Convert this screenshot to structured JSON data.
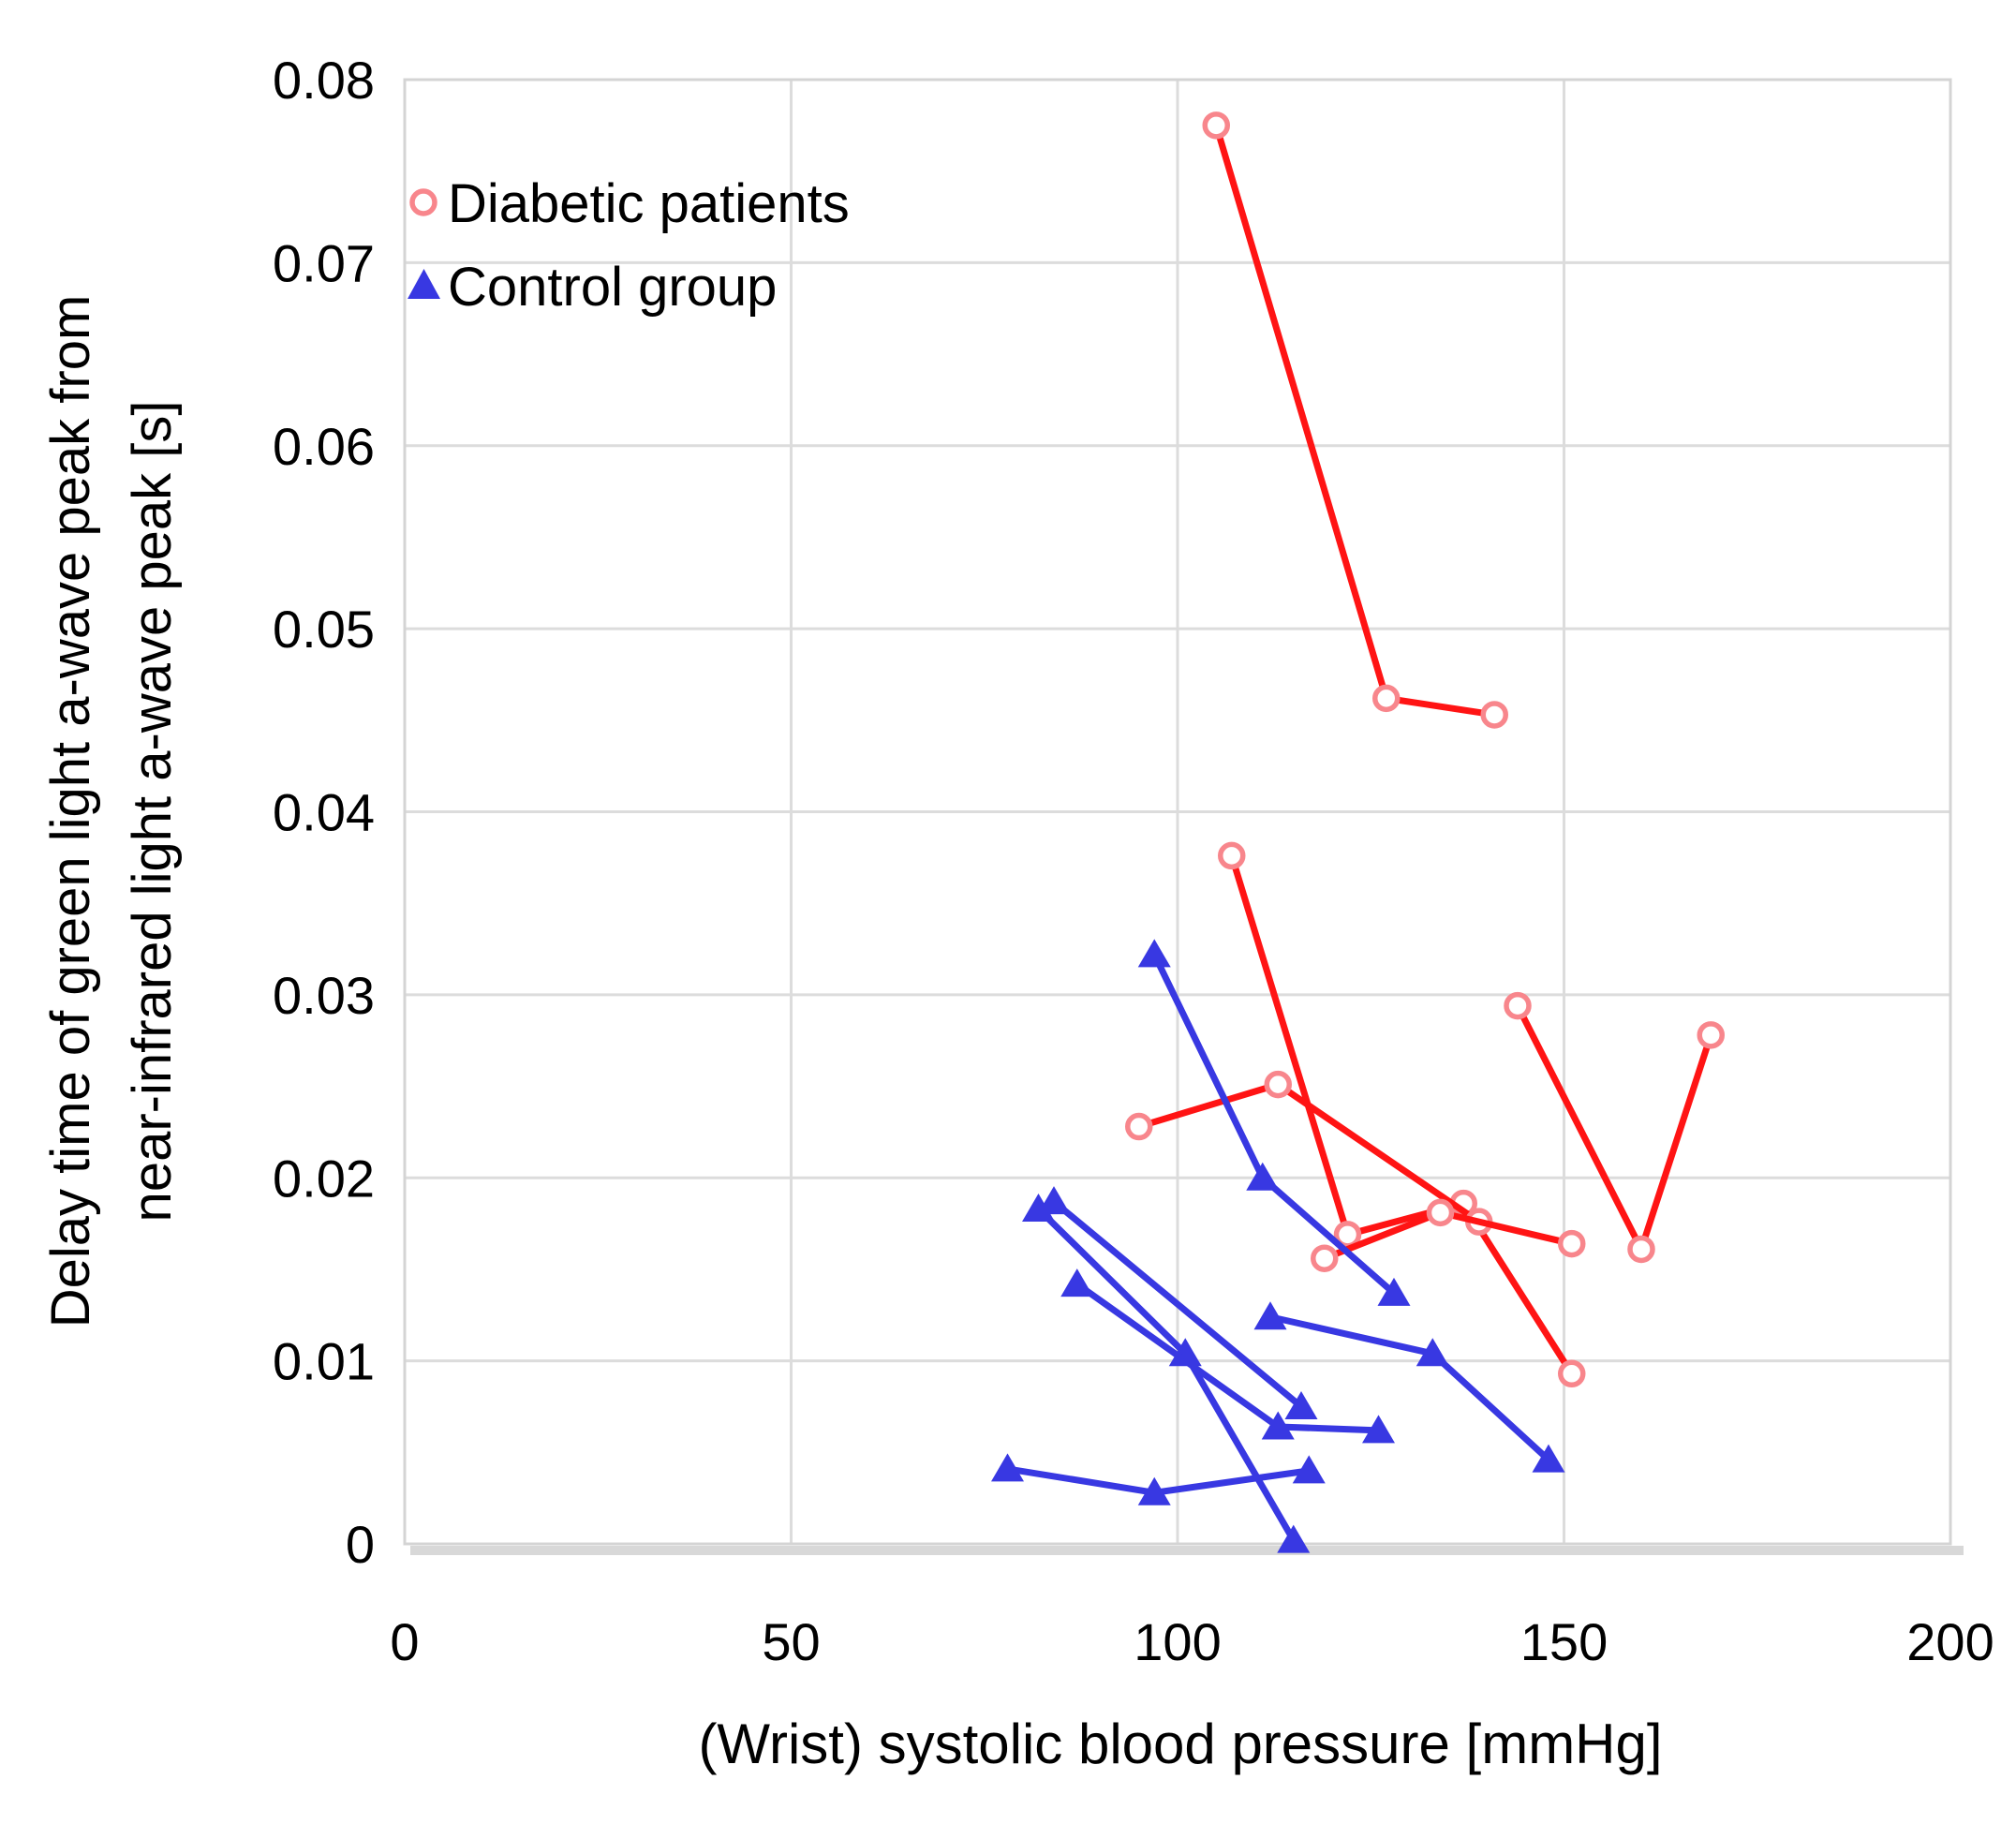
{
  "chart_data": {
    "type": "line",
    "title": "",
    "xlabel": "(Wrist) systolic blood pressure [mmHg]",
    "ylabel_line1": "Delay time of green light a-wave peak from",
    "ylabel_line2": "near-infrared light a-wave peak [s]",
    "xlim": [
      0,
      200
    ],
    "ylim": [
      0,
      0.08
    ],
    "xticks": [
      0,
      50,
      100,
      150,
      200
    ],
    "xtick_labels": [
      "0",
      "50",
      "100",
      "150",
      "200"
    ],
    "yticks": [
      0,
      0.01,
      0.02,
      0.03,
      0.04,
      0.05,
      0.06,
      0.07,
      0.08
    ],
    "ytick_labels": [
      "0",
      "0.01",
      "0.02",
      "0.03",
      "0.04",
      "0.05",
      "0.06",
      "0.07",
      "0.08"
    ],
    "grid": true,
    "legend_position": "top-left-inside",
    "colors": {
      "diabetic_line": "#ff1414",
      "diabetic_marker": "#f8868c",
      "control": "#3838e2",
      "grid": "#dcdcdc",
      "border": "#d4d4d4",
      "axis_shadow": "#d8d8d8",
      "text": "#000000"
    },
    "legend": [
      {
        "label": "Diabetic patients",
        "group": "diabetic",
        "marker": "open-circle"
      },
      {
        "label": "Control group",
        "group": "control",
        "marker": "filled-triangle"
      }
    ],
    "series": [
      {
        "group": "diabetic",
        "points": [
          [
            105,
            0.0775
          ],
          [
            127,
            0.0462
          ],
          [
            141,
            0.0453
          ]
        ]
      },
      {
        "group": "diabetic",
        "points": [
          [
            107,
            0.0376
          ],
          [
            122,
            0.0169
          ],
          [
            137,
            0.0186
          ],
          [
            151,
            0.0093
          ]
        ]
      },
      {
        "group": "diabetic",
        "points": [
          [
            95,
            0.0228
          ],
          [
            113,
            0.0251
          ],
          [
            139,
            0.0176
          ]
        ]
      },
      {
        "group": "diabetic",
        "points": [
          [
            119,
            0.0156
          ],
          [
            134,
            0.0181
          ],
          [
            151,
            0.0164
          ]
        ]
      },
      {
        "group": "diabetic",
        "points": [
          [
            144,
            0.0294
          ],
          [
            160,
            0.0161
          ],
          [
            169,
            0.0278
          ]
        ]
      },
      {
        "group": "control",
        "points": [
          [
            97,
            0.0322
          ],
          [
            111,
            0.02
          ],
          [
            128,
            0.0137
          ]
        ]
      },
      {
        "group": "control",
        "points": [
          [
            112,
            0.0124
          ],
          [
            133,
            0.0104
          ],
          [
            148,
            0.0046
          ]
        ]
      },
      {
        "group": "control",
        "points": [
          [
            82,
            0.0183
          ],
          [
            101,
            0.0104
          ],
          [
            115,
            0.0002
          ]
        ]
      },
      {
        "group": "control",
        "points": [
          [
            84,
            0.0187
          ],
          [
            116,
            0.0075
          ]
        ]
      },
      {
        "group": "control",
        "points": [
          [
            87,
            0.0142
          ],
          [
            113,
            0.0064
          ],
          [
            126,
            0.0062
          ]
        ]
      },
      {
        "group": "control",
        "points": [
          [
            78,
            0.0041
          ],
          [
            97,
            0.0028
          ],
          [
            117,
            0.004
          ]
        ]
      }
    ]
  }
}
